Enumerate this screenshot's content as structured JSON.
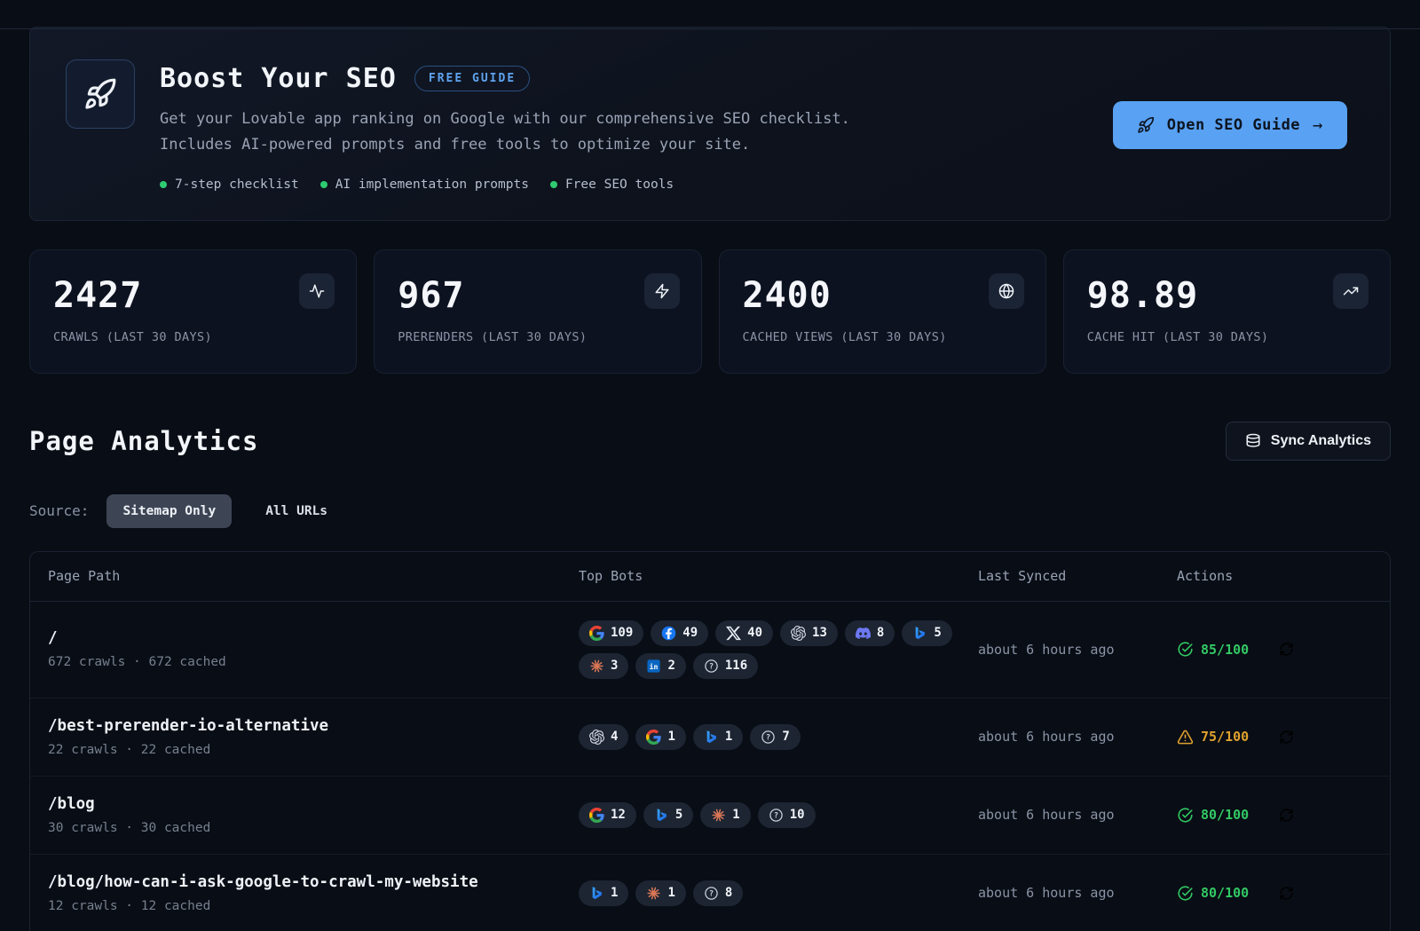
{
  "colors": {
    "accent_blue": "#59a1f3",
    "success_green": "#32c964",
    "warning_amber": "#e0a22e",
    "feature_dot_green": "#2ecc71"
  },
  "banner": {
    "title": "Boost Your SEO",
    "badge": "FREE GUIDE",
    "description": "Get your Lovable app ranking on Google with our comprehensive SEO checklist. Includes AI-powered prompts and free tools to optimize your site.",
    "features": [
      "7-step checklist",
      "AI implementation prompts",
      "Free SEO tools"
    ],
    "cta_label": "Open SEO Guide",
    "cta_arrow": "→"
  },
  "stats": [
    {
      "value": "2427",
      "label": "CRAWLS (LAST 30 DAYS)",
      "icon": "activity"
    },
    {
      "value": "967",
      "label": "PRERENDERS (LAST 30 DAYS)",
      "icon": "zap"
    },
    {
      "value": "2400",
      "label": "CACHED VIEWS (LAST 30 DAYS)",
      "icon": "globe"
    },
    {
      "value": "98.89",
      "label": "CACHE HIT (LAST 30 DAYS)",
      "icon": "trending-up"
    }
  ],
  "analytics": {
    "heading": "Page Analytics",
    "sync_button": "Sync Analytics",
    "source_label": "Source:",
    "sources": [
      {
        "label": "Sitemap Only",
        "active": true
      },
      {
        "label": "All URLs",
        "active": false
      }
    ]
  },
  "table": {
    "headers": {
      "path": "Page Path",
      "bots": "Top Bots",
      "synced": "Last Synced",
      "actions": "Actions"
    },
    "rows": [
      {
        "path": "/",
        "meta": "672 crawls · 672 cached",
        "bots": [
          {
            "name": "google",
            "count": "109"
          },
          {
            "name": "facebook",
            "count": "49"
          },
          {
            "name": "x",
            "count": "40"
          },
          {
            "name": "openai",
            "count": "13"
          },
          {
            "name": "discord",
            "count": "8"
          },
          {
            "name": "bing",
            "count": "5"
          },
          {
            "name": "anthropic",
            "count": "3"
          },
          {
            "name": "linkedin",
            "count": "2"
          },
          {
            "name": "unknown",
            "count": "116"
          }
        ],
        "last_synced": "about 6 hours ago",
        "score": "85/100",
        "score_status": "good"
      },
      {
        "path": "/best-prerender-io-alternative",
        "meta": "22 crawls · 22 cached",
        "bots": [
          {
            "name": "openai",
            "count": "4"
          },
          {
            "name": "google",
            "count": "1"
          },
          {
            "name": "bing",
            "count": "1"
          },
          {
            "name": "unknown",
            "count": "7"
          }
        ],
        "last_synced": "about 6 hours ago",
        "score": "75/100",
        "score_status": "warn"
      },
      {
        "path": "/blog",
        "meta": "30 crawls · 30 cached",
        "bots": [
          {
            "name": "google",
            "count": "12"
          },
          {
            "name": "bing",
            "count": "5"
          },
          {
            "name": "anthropic",
            "count": "1"
          },
          {
            "name": "unknown",
            "count": "10"
          }
        ],
        "last_synced": "about 6 hours ago",
        "score": "80/100",
        "score_status": "good"
      },
      {
        "path": "/blog/how-can-i-ask-google-to-crawl-my-website",
        "meta": "12 crawls · 12 cached",
        "bots": [
          {
            "name": "bing",
            "count": "1"
          },
          {
            "name": "anthropic",
            "count": "1"
          },
          {
            "name": "unknown",
            "count": "8"
          }
        ],
        "last_synced": "about 6 hours ago",
        "score": "80/100",
        "score_status": "good"
      }
    ]
  }
}
